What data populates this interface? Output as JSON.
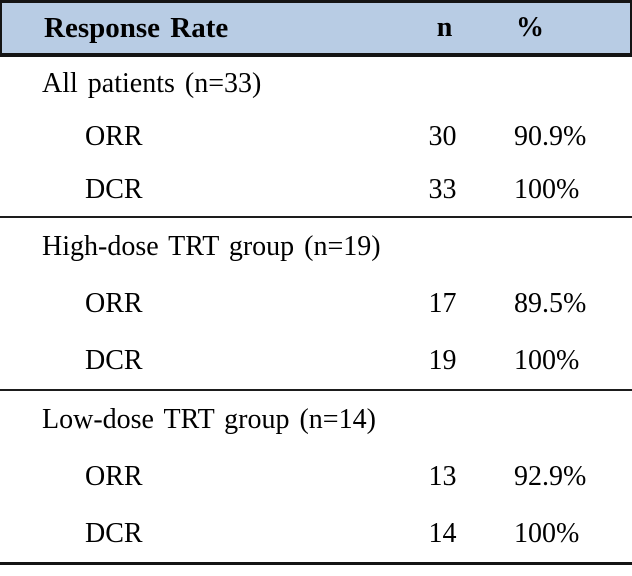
{
  "table": {
    "header": {
      "col1": "Response Rate",
      "col2": "n",
      "col3": "%"
    },
    "header_bg": "#b8cce4",
    "border_color": "#141414",
    "sections": [
      {
        "title": "All patients (n=33)",
        "rows": [
          {
            "label": "ORR",
            "n": "30",
            "pct": "90.9%"
          },
          {
            "label": "DCR",
            "n": "33",
            "pct": "100%"
          }
        ]
      },
      {
        "title": "High-dose TRT group (n=19)",
        "rows": [
          {
            "label": "ORR",
            "n": "17",
            "pct": "89.5%"
          },
          {
            "label": "DCR",
            "n": "19",
            "pct": "100%"
          }
        ]
      },
      {
        "title": "Low-dose TRT group (n=14)",
        "rows": [
          {
            "label": "ORR",
            "n": "13",
            "pct": "92.9%"
          },
          {
            "label": "DCR",
            "n": "14",
            "pct": "100%"
          }
        ]
      }
    ]
  },
  "chart_data": {
    "type": "table",
    "title": "Response Rate",
    "columns": [
      "Response Rate",
      "n",
      "%"
    ],
    "sections": [
      {
        "group": "All patients (n=33)",
        "rows": [
          [
            "ORR",
            30,
            "90.9%"
          ],
          [
            "DCR",
            33,
            "100%"
          ]
        ]
      },
      {
        "group": "High-dose TRT group (n=19)",
        "rows": [
          [
            "ORR",
            17,
            "89.5%"
          ],
          [
            "DCR",
            19,
            "100%"
          ]
        ]
      },
      {
        "group": "Low-dose TRT group (n=14)",
        "rows": [
          [
            "ORR",
            13,
            "92.9%"
          ],
          [
            "DCR",
            14,
            "100%"
          ]
        ]
      }
    ],
    "layout": {
      "header_background": "#b8cce4",
      "grid": "horizontal rules only",
      "font": "serif"
    }
  }
}
